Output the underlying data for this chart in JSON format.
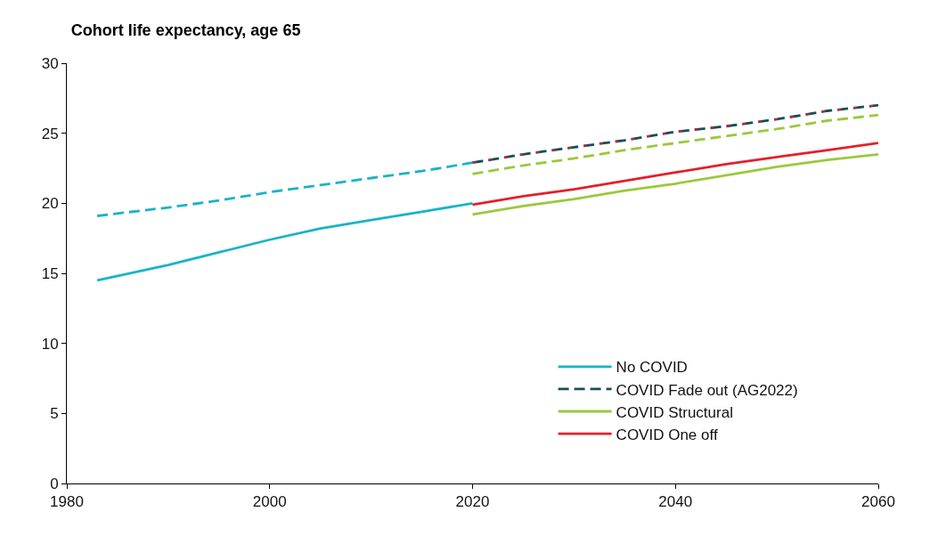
{
  "chart_data": {
    "type": "line",
    "title": "Cohort life expectancy, age 65",
    "xlim": [
      1980,
      2060
    ],
    "xticks": [
      1980,
      2000,
      2020,
      2040,
      2060
    ],
    "ylim": [
      0,
      30
    ],
    "yticks": [
      0,
      5,
      10,
      15,
      20,
      25,
      30
    ],
    "legend": "bottom right",
    "marker": "none",
    "series": [
      {
        "name": "No COVID",
        "color": "#1ab3c6",
        "line_style": "solid",
        "x": [
          1983,
          1990,
          1995,
          2000,
          2005,
          2010,
          2015,
          2020
        ],
        "values": [
          14.5,
          15.6,
          16.5,
          17.4,
          18.2,
          18.8,
          19.4,
          20.0
        ]
      },
      {
        "color": "#1ab3c6",
        "line_style": "dashed",
        "x": [
          1983,
          1990,
          1995,
          2000,
          2005,
          2010,
          2015,
          2020
        ],
        "values": [
          19.1,
          19.7,
          20.2,
          20.8,
          21.3,
          21.8,
          22.3,
          22.9
        ]
      },
      {
        "name": "COVID Fade out (AG2022)",
        "color": "#134e5e",
        "line_style": "dashed",
        "x": [
          2020,
          2025,
          2030,
          2035,
          2040,
          2045,
          2050,
          2055,
          2060
        ],
        "values": [
          22.9,
          23.5,
          24.0,
          24.5,
          25.1,
          25.5,
          26.0,
          26.6,
          27.0
        ]
      },
      {
        "name": "COVID Structural",
        "color": "#99c93c",
        "line_style": "solid",
        "x": [
          2020,
          2025,
          2030,
          2035,
          2040,
          2045,
          2050,
          2055,
          2060
        ],
        "values": [
          19.2,
          19.8,
          20.3,
          20.9,
          21.4,
          22.0,
          22.6,
          23.1,
          23.5
        ]
      },
      {
        "name": "COVID One off",
        "color": "#e3202b",
        "line_style": "solid",
        "x": [
          2020,
          2025,
          2030,
          2035,
          2040,
          2045,
          2050,
          2055,
          2060
        ],
        "values": [
          19.9,
          20.5,
          21.0,
          21.6,
          22.2,
          22.8,
          23.3,
          23.8,
          24.3
        ]
      },
      {
        "color": "#99c93c",
        "line_style": "dashed",
        "x": [
          2020,
          2025,
          2030,
          2035,
          2040,
          2045,
          2050,
          2055,
          2060
        ],
        "values": [
          22.1,
          22.7,
          23.2,
          23.8,
          24.3,
          24.8,
          25.3,
          25.9,
          26.3
        ]
      },
      {
        "color": "#e3202b",
        "line_style": "dotted",
        "x": [
          2020,
          2025,
          2030,
          2035,
          2040,
          2045,
          2050,
          2055,
          2060
        ],
        "values": [
          22.9,
          23.5,
          24.0,
          24.5,
          25.1,
          25.5,
          26.0,
          26.6,
          27.0
        ]
      }
    ]
  }
}
